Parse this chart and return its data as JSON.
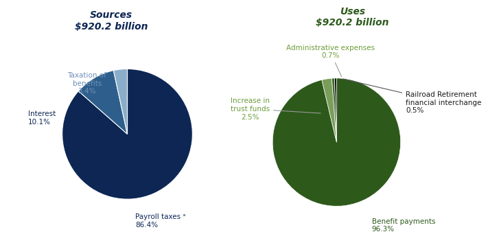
{
  "sources_title": "Sources\n$920.2 billion",
  "uses_title": "Uses\n$920.2 billion",
  "sources_values": [
    86.4,
    10.1,
    3.4
  ],
  "sources_colors": [
    "#0d2654",
    "#2e5f8c",
    "#8aaec9"
  ],
  "uses_values": [
    96.3,
    2.5,
    0.7,
    0.5
  ],
  "uses_colors": [
    "#2d5a1b",
    "#7a9e5a",
    "#1a1a1a",
    "#1a1a1a"
  ],
  "title_color_blue": "#0d2654",
  "title_color_green": "#2d5a1b",
  "label_color_blue": "#0d2654",
  "label_color_lightblue": "#7090b8",
  "label_color_green": "#2d5a1b",
  "label_color_lightgreen": "#6b9e3a",
  "label_color_dark": "#1a1a1a",
  "background_color": "#ffffff"
}
